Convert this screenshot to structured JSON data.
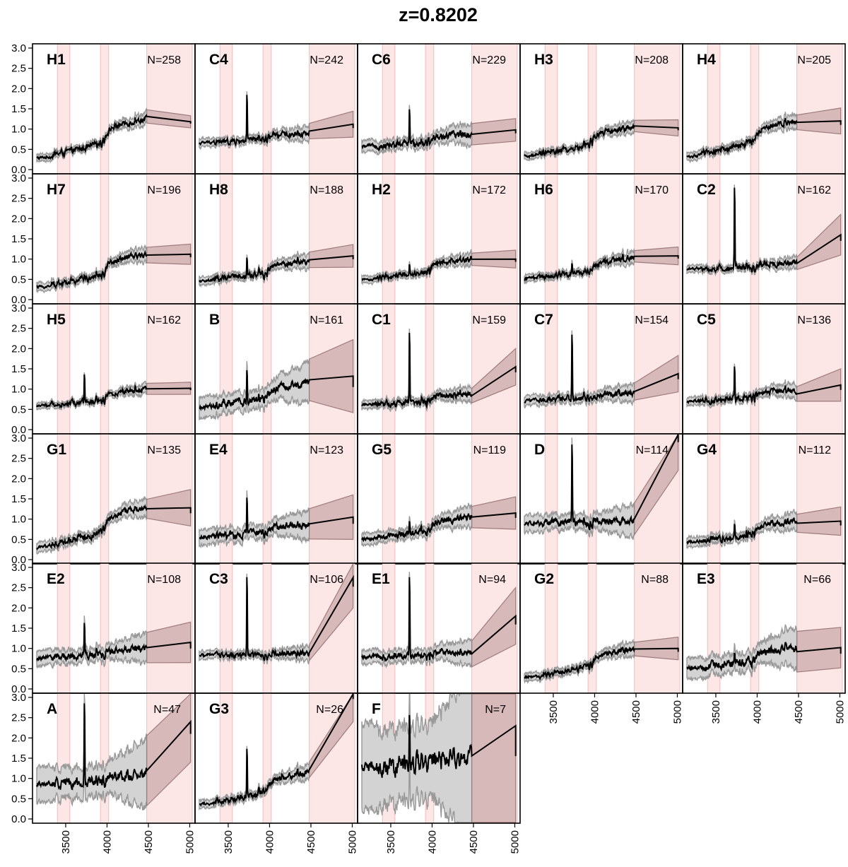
{
  "title": "z=0.8202",
  "chart_data": {
    "type": "line",
    "layout": "small-multiples",
    "xlim": [
      3150,
      5030
    ],
    "ylim": [
      0.0,
      3.0
    ],
    "x_ticks": [
      3500,
      4000,
      4500,
      5000
    ],
    "x_tick_labels": [
      "3500",
      "4000",
      "4500",
      "5000"
    ],
    "y_ticks": [
      0.0,
      0.5,
      1.0,
      1.5,
      2.0,
      2.5,
      3.0
    ],
    "y_tick_labels": [
      "0.0",
      "0.5",
      "1.0",
      "1.5",
      "2.0",
      "2.5",
      "3.0"
    ],
    "shaded_x_ranges": [
      [
        3400,
        3550
      ],
      [
        3920,
        4020
      ],
      [
        4480,
        5030
      ]
    ],
    "colors": {
      "line": "#000000",
      "band_grey": "#d3d3d3",
      "band_edge": "#999999",
      "band_extrap": "#c9a9a9",
      "band_extrap_edge": "#9e7c7c",
      "shade": "#fde6e6",
      "shade_edge": "#f3bcbc"
    },
    "panels": [
      {
        "label": "H1",
        "n": "N=258",
        "base": 0.28,
        "end": 1.25,
        "last": 1.18,
        "emission": 0.0,
        "band": 0.1,
        "end_band": 0.15
      },
      {
        "label": "C4",
        "n": "N=242",
        "base": 0.65,
        "end": 0.9,
        "last": 1.12,
        "emission": 1.35,
        "band": 0.12,
        "end_band": 0.32
      },
      {
        "label": "C6",
        "n": "N=229",
        "base": 0.56,
        "end": 0.88,
        "last": 0.98,
        "emission": 1.0,
        "band": 0.18,
        "end_band": 0.28
      },
      {
        "label": "H3",
        "n": "N=208",
        "base": 0.32,
        "end": 1.05,
        "last": 1.03,
        "emission": 0.0,
        "band": 0.1,
        "end_band": 0.2
      },
      {
        "label": "H4",
        "n": "N=205",
        "base": 0.32,
        "end": 1.22,
        "last": 1.2,
        "emission": 0.0,
        "band": 0.12,
        "end_band": 0.32
      },
      {
        "label": "H7",
        "n": "N=196",
        "base": 0.3,
        "end": 1.12,
        "last": 1.12,
        "emission": 0.12,
        "band": 0.12,
        "end_band": 0.25
      },
      {
        "label": "H8",
        "n": "N=188",
        "base": 0.45,
        "end": 0.95,
        "last": 1.08,
        "emission": 0.55,
        "band": 0.12,
        "end_band": 0.28
      },
      {
        "label": "H2",
        "n": "N=172",
        "base": 0.48,
        "end": 1.02,
        "last": 1.0,
        "emission": 0.3,
        "band": 0.1,
        "end_band": 0.22
      },
      {
        "label": "H6",
        "n": "N=170",
        "base": 0.52,
        "end": 1.02,
        "last": 1.08,
        "emission": 0.28,
        "band": 0.1,
        "end_band": 0.22
      },
      {
        "label": "C2",
        "n": "N=162",
        "base": 0.75,
        "end": 0.9,
        "last": 1.6,
        "emission": 2.3,
        "band": 0.1,
        "end_band": 0.5
      },
      {
        "label": "H5",
        "n": "N=162",
        "base": 0.58,
        "end": 0.98,
        "last": 1.02,
        "emission": 0.8,
        "band": 0.08,
        "end_band": 0.15
      },
      {
        "label": "B",
        "n": "N=161",
        "base": 0.55,
        "end": 1.15,
        "last": 1.32,
        "emission": 0.9,
        "band": 0.35,
        "end_band": 0.9
      },
      {
        "label": "C1",
        "n": "N=159",
        "base": 0.6,
        "end": 0.88,
        "last": 1.55,
        "emission": 2.0,
        "band": 0.12,
        "end_band": 0.45
      },
      {
        "label": "C7",
        "n": "N=154",
        "base": 0.7,
        "end": 0.92,
        "last": 1.38,
        "emission": 1.85,
        "band": 0.15,
        "end_band": 0.45
      },
      {
        "label": "C5",
        "n": "N=136",
        "base": 0.68,
        "end": 0.98,
        "last": 1.1,
        "emission": 0.95,
        "band": 0.12,
        "end_band": 0.4
      },
      {
        "label": "G1",
        "n": "N=135",
        "base": 0.3,
        "end": 1.28,
        "last": 1.28,
        "emission": 0.1,
        "band": 0.15,
        "end_band": 0.45
      },
      {
        "label": "E4",
        "n": "N=123",
        "base": 0.55,
        "end": 0.85,
        "last": 1.05,
        "emission": 1.1,
        "band": 0.25,
        "end_band": 0.55
      },
      {
        "label": "G5",
        "n": "N=119",
        "base": 0.5,
        "end": 1.05,
        "last": 1.15,
        "emission": 0.4,
        "band": 0.18,
        "end_band": 0.4
      },
      {
        "label": "D",
        "n": "N=114",
        "base": 0.88,
        "end": 0.95,
        "last": 3.2,
        "emission": 2.3,
        "band": 0.28,
        "end_band": 1.0
      },
      {
        "label": "G4",
        "n": "N=112",
        "base": 0.42,
        "end": 0.95,
        "last": 0.95,
        "emission": 0.4,
        "band": 0.15,
        "end_band": 0.35
      },
      {
        "label": "E2",
        "n": "N=108",
        "base": 0.75,
        "end": 1.0,
        "last": 1.15,
        "emission": 0.95,
        "band": 0.25,
        "end_band": 0.5
      },
      {
        "label": "C3",
        "n": "N=106",
        "base": 0.82,
        "end": 0.88,
        "last": 2.75,
        "emission": 2.3,
        "band": 0.12,
        "end_band": 0.75
      },
      {
        "label": "E1",
        "n": "N=94",
        "base": 0.78,
        "end": 0.92,
        "last": 1.8,
        "emission": 2.3,
        "band": 0.22,
        "end_band": 0.7
      },
      {
        "label": "G2",
        "n": "N=88",
        "base": 0.28,
        "end": 1.0,
        "last": 1.0,
        "emission": 0.1,
        "band": 0.12,
        "end_band": 0.28
      },
      {
        "label": "E3",
        "n": "N=66",
        "base": 0.5,
        "end": 1.02,
        "last": 1.02,
        "emission": 0.3,
        "band": 0.35,
        "end_band": 0.5
      },
      {
        "label": "A",
        "n": "N=47",
        "base": 0.82,
        "end": 1.12,
        "last": 2.4,
        "emission": 2.3,
        "band": 0.6,
        "end_band": 1.0
      },
      {
        "label": "G3",
        "n": "N=26",
        "base": 0.35,
        "end": 1.15,
        "last": 3.2,
        "emission": 1.4,
        "band": 0.12,
        "end_band": 0.8
      },
      {
        "label": "F",
        "n": "N=7",
        "base": 1.3,
        "end": 1.5,
        "last": 2.3,
        "emission": 1.5,
        "band": 1.5,
        "end_band": 2.5
      }
    ]
  }
}
